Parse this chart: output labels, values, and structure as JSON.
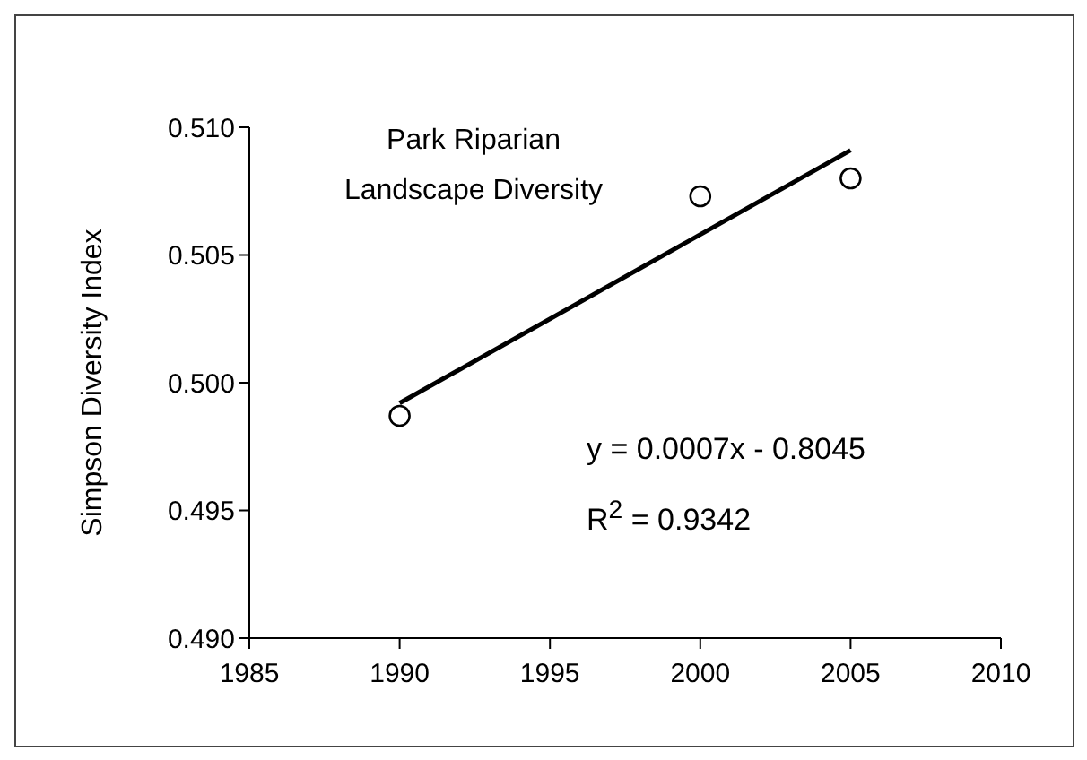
{
  "chart_data": {
    "type": "scatter",
    "title": "Park Riparian\nLandscape Diversity",
    "ylabel": "Simpson Diversity Index",
    "annotations": [
      "y = 0.0007x - 0.8045",
      "R$^{2}$ = 0.9342"
    ],
    "xlim": [
      1985,
      2010
    ],
    "xticks": [
      1985,
      1990,
      1995,
      2000,
      2005,
      2010
    ],
    "ylim": [
      0.49,
      0.51
    ],
    "yticks": [
      {
        "value": 0.49,
        "label": "0.490"
      },
      {
        "value": 0.495,
        "label": "0.495"
      },
      {
        "value": 0.5,
        "label": "0.500"
      },
      {
        "value": 0.505,
        "label": "0.505"
      },
      {
        "value": 0.51,
        "label": "0.510"
      }
    ],
    "marker": "circle",
    "grid": false,
    "series": [
      {
        "color": "#000000",
        "x": [
          1990,
          2000,
          2005
        ],
        "values": [
          0.4987,
          0.5073,
          0.508
        ]
      },
      {
        "type": "line",
        "color": "#000000",
        "line_style": "solid",
        "marker": "none",
        "x": [
          1990,
          2005
        ],
        "values": [
          0.4992,
          0.5091
        ]
      }
    ]
  }
}
